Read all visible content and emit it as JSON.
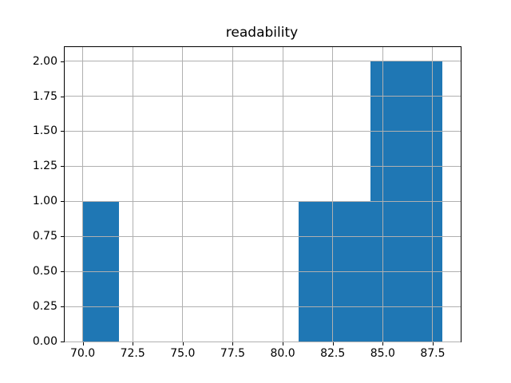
{
  "title": "readability",
  "colors": {
    "bar": "#1f77b4",
    "grid": "#b0b0b0",
    "spine": "#000000",
    "background": "#ffffff",
    "text": "#000000"
  },
  "chart_data": {
    "type": "bar",
    "subtype": "histogram",
    "title": "readability",
    "xlabel": "",
    "ylabel": "",
    "bin_edges": [
      70.0,
      71.8,
      73.6,
      75.4,
      77.2,
      79.0,
      80.8,
      82.6,
      84.4,
      86.2,
      88.0
    ],
    "counts": [
      1,
      0,
      0,
      0,
      0,
      0,
      1,
      1,
      2,
      2
    ],
    "xlim": [
      69.1,
      88.9
    ],
    "ylim": [
      0,
      2.1
    ],
    "x_ticks": [
      70.0,
      72.5,
      75.0,
      77.5,
      80.0,
      82.5,
      85.0,
      87.5
    ],
    "x_tick_labels": [
      "70.0",
      "72.5",
      "75.0",
      "77.5",
      "80.0",
      "82.5",
      "85.0",
      "87.5"
    ],
    "y_ticks": [
      0.0,
      0.25,
      0.5,
      0.75,
      1.0,
      1.25,
      1.5,
      1.75,
      2.0
    ],
    "y_tick_labels": [
      "0.00",
      "0.25",
      "0.50",
      "0.75",
      "1.00",
      "1.25",
      "1.50",
      "1.75",
      "2.00"
    ],
    "grid": true,
    "grid_above_bars": true,
    "legend": "none",
    "bar_color": "#1f77b4"
  }
}
